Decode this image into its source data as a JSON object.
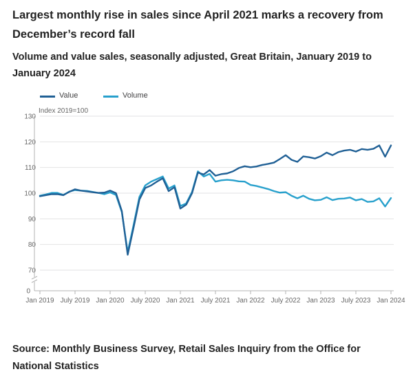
{
  "header": {
    "title": "Largest monthly rise in sales since April 2021 marks a recovery from December’s record fall",
    "subtitle": "Volume and value sales, seasonally adjusted, Great Britain, January 2019 to January 2024"
  },
  "footer": {
    "source": "Source: Monthly Business Survey, Retail Sales Inquiry from the Office for National Statistics"
  },
  "colors": {
    "value": "#206095",
    "volume": "#27a0cc",
    "grid": "#e2e2e3",
    "axis": "#b3b3b3"
  },
  "chart_data": {
    "type": "line",
    "title": "Largest monthly rise in sales since April 2021 marks a recovery from December’s record fall",
    "ylabel": "Index 2019=100",
    "xlabel": "",
    "ylim": [
      70,
      130
    ],
    "y_ticks": [
      130,
      120,
      110,
      100,
      90,
      80,
      70
    ],
    "y_zero_label": "0",
    "axis_break": true,
    "grid": true,
    "legend_position": "top-left",
    "x_tick_labels": [
      "Jan 2019",
      "July 2019",
      "Jan 2020",
      "July 2020",
      "Jan 2021",
      "July 2021",
      "Jan 2022",
      "July 2022",
      "Jan 2023",
      "July 2023",
      "Jan 2024"
    ],
    "x_tick_indices": [
      0,
      6,
      12,
      18,
      24,
      30,
      36,
      42,
      48,
      54,
      60
    ],
    "x_start": "Jan 2019",
    "x_end": "Jan 2024",
    "series": [
      {
        "name": "Value",
        "values": [
          98.8,
          99.2,
          99.6,
          99.6,
          99.2,
          100.5,
          101.5,
          101.0,
          100.7,
          100.4,
          100.1,
          100.2,
          101.0,
          100.0,
          93.0,
          76.0,
          86.5,
          97.5,
          102.0,
          103.0,
          104.5,
          105.8,
          100.8,
          102.3,
          94.0,
          95.5,
          100.0,
          108.0,
          107.3,
          109.0,
          106.8,
          107.4,
          107.7,
          108.5,
          109.8,
          110.5,
          110.1,
          110.4,
          111.0,
          111.4,
          111.9,
          113.3,
          114.8,
          113.0,
          112.2,
          114.3,
          114.0,
          113.5,
          114.4,
          115.8,
          114.8,
          116.0,
          116.6,
          116.9,
          116.2,
          117.2,
          116.9,
          117.3,
          118.6,
          114.2,
          118.6
        ]
      },
      {
        "name": "Volume",
        "values": [
          99.0,
          99.5,
          100.1,
          100.1,
          99.3,
          100.6,
          101.2,
          101.0,
          100.9,
          100.5,
          100.1,
          99.6,
          100.3,
          99.3,
          92.6,
          77.0,
          87.5,
          98.5,
          103.0,
          104.5,
          105.5,
          106.5,
          101.8,
          103.0,
          95.0,
          96.0,
          100.5,
          108.5,
          106.5,
          107.5,
          104.5,
          105.0,
          105.2,
          105.0,
          104.6,
          104.5,
          103.2,
          102.8,
          102.2,
          101.6,
          100.8,
          100.2,
          100.4,
          99.0,
          98.0,
          99.0,
          97.8,
          97.2,
          97.4,
          98.4,
          97.3,
          97.8,
          97.9,
          98.3,
          97.2,
          97.7,
          96.6,
          96.8,
          98.0,
          94.8,
          98.1
        ]
      }
    ]
  }
}
